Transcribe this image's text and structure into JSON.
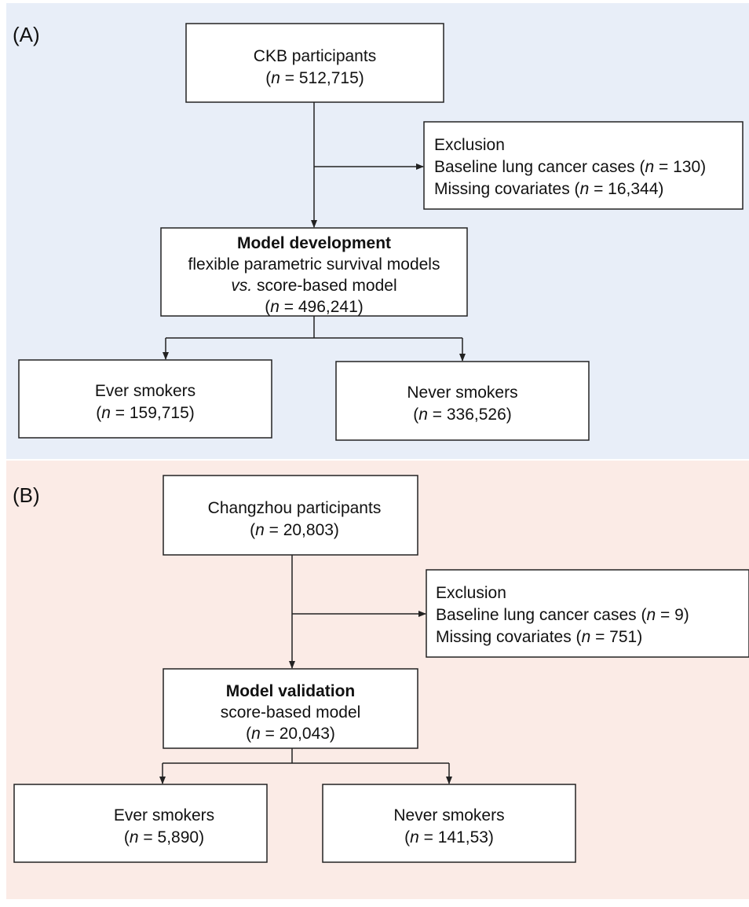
{
  "panels": [
    {
      "label": "(A)",
      "nodes": [
        {
          "lines": [
            [
              {
                "t": "CKB participants"
              }
            ],
            [
              {
                "t": "("
              },
              {
                "t": "n",
                "i": true
              },
              {
                "t": " = 512,715)"
              }
            ]
          ]
        },
        {
          "lines": [
            [
              {
                "t": "Exclusion"
              }
            ],
            [
              {
                "t": "Baseline lung cancer cases ("
              },
              {
                "t": "n",
                "i": true
              },
              {
                "t": " = 130)"
              }
            ],
            [
              {
                "t": "Missing covariates ("
              },
              {
                "t": "n",
                "i": true
              },
              {
                "t": " = 16,344)"
              }
            ]
          ]
        },
        {
          "lines": [
            [
              {
                "t": "Model development",
                "b": true
              }
            ],
            [
              {
                "t": "flexible parametric survival models"
              }
            ],
            [
              {
                "t": "vs.",
                "i": true
              },
              {
                "t": " score-based model"
              }
            ],
            [
              {
                "t": "("
              },
              {
                "t": "n",
                "i": true
              },
              {
                "t": " = 496,241)"
              }
            ]
          ]
        },
        {
          "lines": [
            [
              {
                "t": "Ever smokers"
              }
            ],
            [
              {
                "t": "("
              },
              {
                "t": "n",
                "i": true
              },
              {
                "t": " = 159,715)"
              }
            ]
          ]
        },
        {
          "lines": [
            [
              {
                "t": "Never smokers"
              }
            ],
            [
              {
                "t": "("
              },
              {
                "t": "n",
                "i": true
              },
              {
                "t": " = 336,526)"
              }
            ]
          ]
        }
      ]
    },
    {
      "label": "(B)",
      "nodes": [
        {
          "lines": [
            [
              {
                "t": "Changzhou participants"
              }
            ],
            [
              {
                "t": "("
              },
              {
                "t": "n",
                "i": true
              },
              {
                "t": " = 20,803)"
              }
            ]
          ]
        },
        {
          "lines": [
            [
              {
                "t": "Exclusion"
              }
            ],
            [
              {
                "t": "Baseline lung cancer cases ("
              },
              {
                "t": "n",
                "i": true
              },
              {
                "t": " = 9)"
              }
            ],
            [
              {
                "t": "Missing covariates ("
              },
              {
                "t": "n",
                "i": true
              },
              {
                "t": " = 751)"
              }
            ]
          ]
        },
        {
          "lines": [
            [
              {
                "t": "Model validation",
                "b": true
              }
            ],
            [
              {
                "t": "score-based model"
              }
            ],
            [
              {
                "t": "("
              },
              {
                "t": "n",
                "i": true
              },
              {
                "t": " = 20,043)"
              }
            ]
          ]
        },
        {
          "lines": [
            [
              {
                "t": "Ever smokers"
              }
            ],
            [
              {
                "t": "("
              },
              {
                "t": "n",
                "i": true
              },
              {
                "t": " = 5,890)"
              }
            ]
          ]
        },
        {
          "lines": [
            [
              {
                "t": "Never smokers"
              }
            ],
            [
              {
                "t": "("
              },
              {
                "t": "n",
                "i": true
              },
              {
                "t": " = 141,53)"
              }
            ]
          ]
        }
      ]
    }
  ]
}
